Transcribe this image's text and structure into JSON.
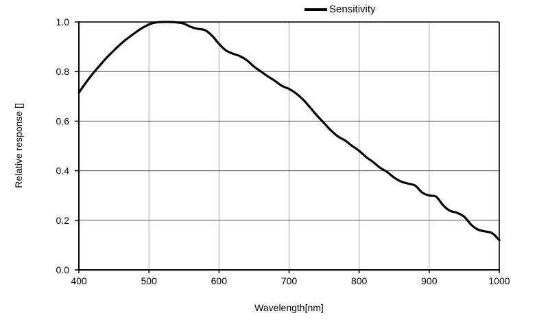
{
  "chart_data": {
    "type": "line",
    "title": "",
    "xlabel": "Wavelength[nm]",
    "ylabel": "Relative response []",
    "xlim": [
      400,
      1000
    ],
    "ylim": [
      0.0,
      1.0
    ],
    "grid": true,
    "x_tick_labels": [
      "400",
      "500",
      "600",
      "700",
      "800",
      "900",
      "1000"
    ],
    "x_ticks": [
      400,
      500,
      600,
      700,
      800,
      900,
      1000
    ],
    "y_tick_labels": [
      "0.0",
      "0.2",
      "0.4",
      "0.6",
      "0.8",
      "1.0"
    ],
    "y_ticks": [
      0.0,
      0.2,
      0.4,
      0.6,
      0.8,
      1.0
    ],
    "legend": {
      "position": "top",
      "entries": [
        {
          "label": "Sensitivity",
          "color": "#000000"
        }
      ]
    },
    "curve_color": "#000000",
    "curve_width": 3.2,
    "h_grid_color": "#4d4d4d",
    "v_grid_color": "#a8a8a8",
    "frame_color": "#1a1a1a",
    "series": [
      {
        "name": "Sensitivity",
        "color": "#000000",
        "x": [
          400,
          410,
          420,
          430,
          440,
          450,
          460,
          470,
          480,
          490,
          500,
          510,
          520,
          530,
          540,
          550,
          560,
          570,
          580,
          590,
          600,
          610,
          620,
          630,
          640,
          650,
          660,
          670,
          680,
          690,
          700,
          710,
          720,
          730,
          740,
          750,
          760,
          770,
          780,
          790,
          800,
          810,
          820,
          830,
          840,
          850,
          860,
          870,
          880,
          890,
          900,
          910,
          920,
          930,
          940,
          950,
          960,
          970,
          980,
          990,
          1000
        ],
        "y": [
          0.715,
          0.755,
          0.792,
          0.825,
          0.857,
          0.885,
          0.912,
          0.935,
          0.956,
          0.975,
          0.99,
          0.998,
          1.0,
          1.0,
          0.998,
          0.993,
          0.98,
          0.972,
          0.967,
          0.945,
          0.912,
          0.885,
          0.872,
          0.862,
          0.845,
          0.82,
          0.8,
          0.78,
          0.762,
          0.742,
          0.73,
          0.712,
          0.687,
          0.655,
          0.622,
          0.592,
          0.562,
          0.538,
          0.522,
          0.5,
          0.48,
          0.455,
          0.435,
          0.412,
          0.395,
          0.372,
          0.356,
          0.348,
          0.34,
          0.312,
          0.3,
          0.295,
          0.26,
          0.238,
          0.23,
          0.214,
          0.182,
          0.162,
          0.155,
          0.148,
          0.12
        ]
      }
    ]
  }
}
